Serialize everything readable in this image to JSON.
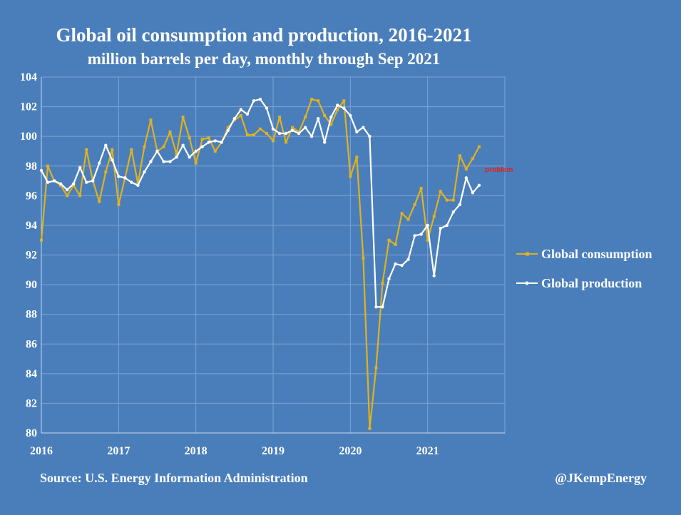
{
  "chart_data": {
    "type": "line",
    "title": "Global oil consumption and production, 2016-2021",
    "subtitle": "million barrels per day, monthly through Sep 2021",
    "ylim": [
      80,
      104
    ],
    "yticks": [
      80,
      82,
      84,
      86,
      88,
      90,
      92,
      94,
      96,
      98,
      100,
      102,
      104
    ],
    "xticks": [
      "2016",
      "2017",
      "2018",
      "2019",
      "2020",
      "2021"
    ],
    "x": [
      "2016-01",
      "2016-02",
      "2016-03",
      "2016-04",
      "2016-05",
      "2016-06",
      "2016-07",
      "2016-08",
      "2016-09",
      "2016-10",
      "2016-11",
      "2016-12",
      "2017-01",
      "2017-02",
      "2017-03",
      "2017-04",
      "2017-05",
      "2017-06",
      "2017-07",
      "2017-08",
      "2017-09",
      "2017-10",
      "2017-11",
      "2017-12",
      "2018-01",
      "2018-02",
      "2018-03",
      "2018-04",
      "2018-05",
      "2018-06",
      "2018-07",
      "2018-08",
      "2018-09",
      "2018-10",
      "2018-11",
      "2018-12",
      "2019-01",
      "2019-02",
      "2019-03",
      "2019-04",
      "2019-05",
      "2019-06",
      "2019-07",
      "2019-08",
      "2019-09",
      "2019-10",
      "2019-11",
      "2019-12",
      "2020-01",
      "2020-02",
      "2020-03",
      "2020-04",
      "2020-05",
      "2020-06",
      "2020-07",
      "2020-08",
      "2020-09",
      "2020-10",
      "2020-11",
      "2020-12",
      "2021-01",
      "2021-02",
      "2021-03",
      "2021-04",
      "2021-05",
      "2021-06",
      "2021-07",
      "2021-08",
      "2021-09"
    ],
    "series": [
      {
        "name": "Global consumption",
        "color": "#e0b21c",
        "values": [
          93.0,
          98.0,
          97.0,
          96.7,
          96.0,
          96.7,
          96.0,
          99.1,
          97.0,
          95.6,
          97.6,
          99.1,
          95.4,
          97.2,
          99.1,
          96.8,
          99.3,
          101.1,
          99.0,
          99.3,
          100.3,
          98.8,
          101.3,
          99.9,
          98.2,
          99.8,
          99.9,
          99.0,
          99.6,
          100.6,
          101.1,
          101.4,
          100.1,
          100.1,
          100.5,
          100.2,
          99.7,
          101.3,
          99.6,
          100.6,
          100.3,
          101.3,
          102.5,
          102.4,
          101.4,
          100.8,
          101.8,
          102.4,
          97.3,
          98.6,
          91.8,
          80.3,
          84.4,
          90.1,
          93.0,
          92.7,
          94.8,
          94.4,
          95.4,
          96.5,
          93.0,
          94.6,
          96.3,
          95.7,
          95.7,
          98.7,
          97.8,
          98.5,
          99.3
        ]
      },
      {
        "name": "Global production",
        "color": "#ffffff",
        "values": [
          97.7,
          96.9,
          97.0,
          96.8,
          96.4,
          96.8,
          97.9,
          96.9,
          97.0,
          98.2,
          99.4,
          98.4,
          97.3,
          97.2,
          96.9,
          96.7,
          97.6,
          98.3,
          99.0,
          98.3,
          98.3,
          98.6,
          99.4,
          98.6,
          99.0,
          99.3,
          99.6,
          99.7,
          99.6,
          100.4,
          101.2,
          101.8,
          101.5,
          102.4,
          102.5,
          101.9,
          100.5,
          100.2,
          100.2,
          100.4,
          100.2,
          100.6,
          100.0,
          101.2,
          99.6,
          101.3,
          102.1,
          101.9,
          101.4,
          100.3,
          100.6,
          100.0,
          88.5,
          88.5,
          90.4,
          91.4,
          91.3,
          91.7,
          93.3,
          93.4,
          94.0,
          90.6,
          93.8,
          94.0,
          94.9,
          95.4,
          97.2,
          96.2,
          96.7
        ]
      }
    ],
    "annotations": [
      "problem"
    ]
  },
  "footer": {
    "source": "Source: U.S. Energy Information Administration",
    "credit": "@JKempEnergy"
  }
}
